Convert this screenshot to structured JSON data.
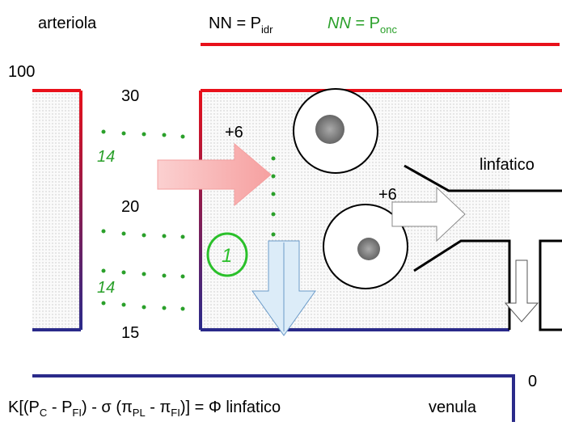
{
  "header": {
    "left": "arteriola",
    "hydro": [
      "NN = P",
      "idr"
    ],
    "onc": [
      "NN",
      " = P",
      "onc"
    ]
  },
  "pressures": {
    "top": 100,
    "bottom": 0
  },
  "vessel": {
    "start": 30,
    "middle": 20,
    "end": 15,
    "onc_top": 14,
    "onc_bottom": 14
  },
  "flows": {
    "filtration": "+6",
    "lymph_entry": "+6",
    "reabsorption": "1"
  },
  "labels": {
    "lymph": "linfatico",
    "venule": "venula"
  },
  "formula": [
    "K[(P",
    "C",
    " - P",
    "FI",
    ") - σ (π",
    "PL",
    " - π",
    "FI",
    ")] = Φ linfatico"
  ]
}
